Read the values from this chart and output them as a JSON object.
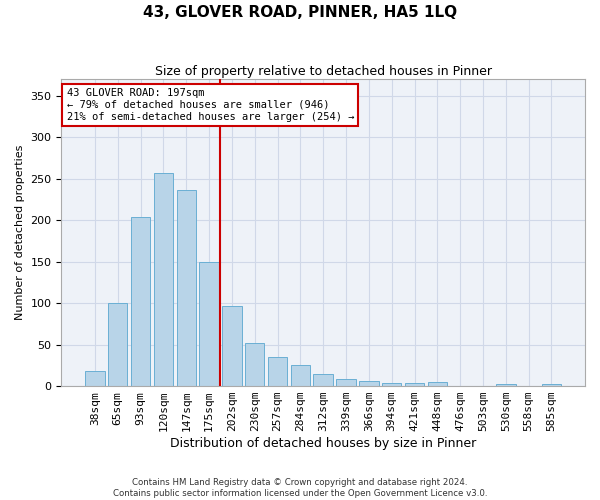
{
  "title": "43, GLOVER ROAD, PINNER, HA5 1LQ",
  "subtitle": "Size of property relative to detached houses in Pinner",
  "xlabel": "Distribution of detached houses by size in Pinner",
  "ylabel": "Number of detached properties",
  "categories": [
    "38sqm",
    "65sqm",
    "93sqm",
    "120sqm",
    "147sqm",
    "175sqm",
    "202sqm",
    "230sqm",
    "257sqm",
    "284sqm",
    "312sqm",
    "339sqm",
    "366sqm",
    "394sqm",
    "421sqm",
    "448sqm",
    "476sqm",
    "503sqm",
    "530sqm",
    "558sqm",
    "585sqm"
  ],
  "values": [
    18,
    100,
    204,
    257,
    236,
    150,
    97,
    52,
    35,
    26,
    14,
    9,
    6,
    4,
    4,
    5,
    0,
    0,
    2,
    0,
    2
  ],
  "bar_color": "#b8d4e8",
  "bar_edge_color": "#6aafd4",
  "grid_color": "#d0d8e8",
  "background_color": "#eef2f8",
  "vline_x_index": 5.5,
  "vline_color": "#cc0000",
  "annotation_text": "43 GLOVER ROAD: 197sqm\n← 79% of detached houses are smaller (946)\n21% of semi-detached houses are larger (254) →",
  "annotation_box_color": "#ffffff",
  "annotation_box_edge": "#cc0000",
  "ylim": [
    0,
    370
  ],
  "yticks": [
    0,
    50,
    100,
    150,
    200,
    250,
    300,
    350
  ],
  "title_fontsize": 11,
  "subtitle_fontsize": 9,
  "ylabel_fontsize": 8,
  "xlabel_fontsize": 9,
  "tick_fontsize": 8,
  "footer_line1": "Contains HM Land Registry data © Crown copyright and database right 2024.",
  "footer_line2": "Contains public sector information licensed under the Open Government Licence v3.0."
}
